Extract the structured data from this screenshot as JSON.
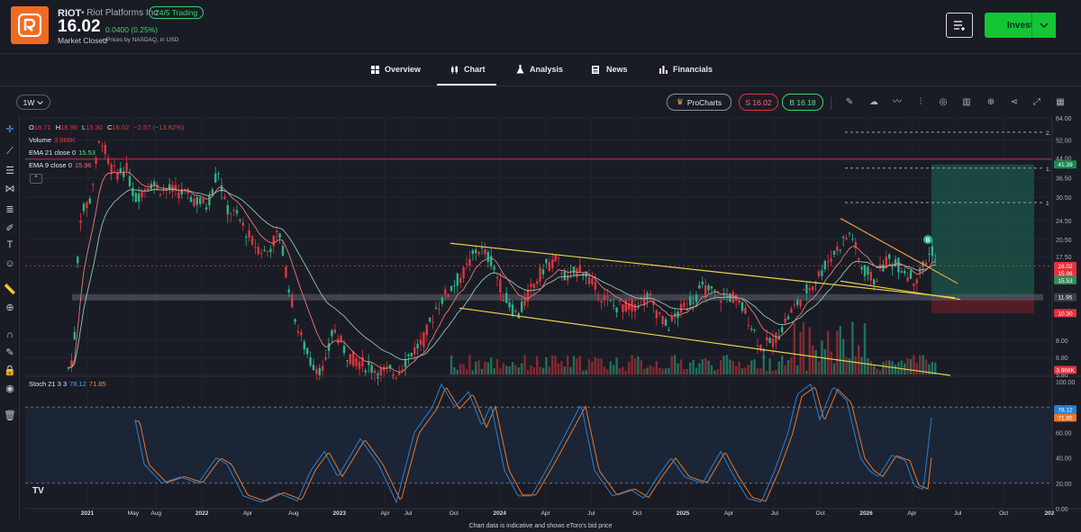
{
  "header": {
    "ticker": "RIOT",
    "company": "• Riot Platforms Inc",
    "trading_badge": "24/5 Trading",
    "price": "16.02",
    "change": "0.0400 (0.25%)",
    "market_status": "Market Closed",
    "price_note": "• Prices by NASDAQ, in USD",
    "invest_label": "Invest"
  },
  "nav": {
    "tabs": [
      {
        "label": "Overview",
        "icon": "grid-icon"
      },
      {
        "label": "Chart",
        "icon": "candles-icon"
      },
      {
        "label": "Analysis",
        "icon": "flask-icon"
      },
      {
        "label": "News",
        "icon": "news-icon"
      },
      {
        "label": "Financials",
        "icon": "bars-icon"
      }
    ],
    "active": "Chart"
  },
  "toolbar": {
    "timeframe": "1W",
    "procharts": "ProCharts",
    "sell": "S 16.02",
    "buy": "B 16.18"
  },
  "legend": {
    "ohlc": {
      "o": "18.71",
      "h": "18.96",
      "l": "15.30",
      "c": "16.02",
      "chg": "−2.57 (−13.82%)"
    },
    "volume_label": "Volume",
    "volume_value": "3.868K",
    "ema21_label": "EMA 21 close 0",
    "ema21_value": "15.53",
    "ema9_label": "EMA 9 close 0",
    "ema9_value": "15.96",
    "stoch_label": "Stoch 21 3 3",
    "stoch_k": "78.12",
    "stoch_d": "71.85"
  },
  "price_axis": [
    "64.00",
    "52.00",
    "44.00",
    "36.50",
    "30.50",
    "24.50",
    "20.50",
    "17.50",
    "8.00",
    "6.80",
    "5.80"
  ],
  "price_badges": [
    {
      "label": "41.39",
      "color": "#1d8a4c"
    },
    {
      "label": "16.02",
      "color": "#e0343e"
    },
    {
      "label": "15.96",
      "color": "#e0343e"
    },
    {
      "label": "15.53",
      "color": "#2f8f5a"
    },
    {
      "label": "11.95",
      "color": "#3a3f4b"
    },
    {
      "label": "10.30",
      "color": "#e0343e"
    },
    {
      "label": "3.868K",
      "color": "#e0343e"
    }
  ],
  "fib_labels": [
    "2.",
    "1.",
    "1"
  ],
  "stoch_axis": [
    "100.00",
    "80.00",
    "60.00",
    "40.00",
    "20.00",
    "0.00"
  ],
  "stoch_badges": [
    {
      "label": "78.12",
      "color": "#2a7fd4"
    },
    {
      "label": "71.85",
      "color": "#e8762a"
    }
  ],
  "time_axis": [
    "2021",
    "May",
    "Aug",
    "2022",
    "Apr",
    "Aug",
    "2023",
    "Apr",
    "Jul",
    "Oct",
    "2024",
    "Apr",
    "Jul",
    "Oct",
    "2025",
    "Apr",
    "Jul",
    "Oct",
    "2026",
    "Apr",
    "Jul",
    "Oct",
    "202"
  ],
  "pattern_badge": "B",
  "footer": "Chart data is indicative and shows eToro's bid price",
  "colors": {
    "up": "#2bb38a",
    "down": "#e0343e",
    "trend": "#e8d04a",
    "ema21": "#8fc7b0",
    "ema9": "#e87a7a",
    "stoch_k": "#2a7fd4",
    "stoch_d": "#e8762a"
  },
  "chart_data": {
    "type": "candlestick",
    "interval": "1W",
    "x_range": [
      "2021",
      "2026-Oct"
    ],
    "y_scale": "log",
    "y_range": [
      5.8,
      64
    ],
    "series": [
      {
        "name": "price",
        "x": [
          "2021",
          "2021-May",
          "2021-Aug",
          "2022",
          "2022-Apr",
          "2022-Aug",
          "2023",
          "2023-Apr",
          "2023-Jul",
          "2023-Oct",
          "2024",
          "2024-Apr",
          "2024-Jul",
          "2024-Oct",
          "2025",
          "2025-Apr",
          "2025-Jul",
          "2025-Oct",
          "2026",
          "2026-Apr"
        ],
        "y": [
          6.5,
          40,
          33,
          35,
          20,
          7.5,
          6,
          11,
          19,
          13,
          16,
          11,
          10,
          12,
          13,
          8,
          13,
          21,
          17,
          16.02
        ]
      }
    ],
    "overlays": [
      "EMA 21",
      "EMA 9",
      "descending channel",
      "long position box"
    ],
    "long_position": {
      "entry": 11.95,
      "target": 41.39,
      "stop": 10.3
    },
    "stoch": {
      "k": 78.12,
      "d": 71.85,
      "range": [
        0,
        100
      ],
      "bands": [
        20,
        80
      ]
    }
  }
}
